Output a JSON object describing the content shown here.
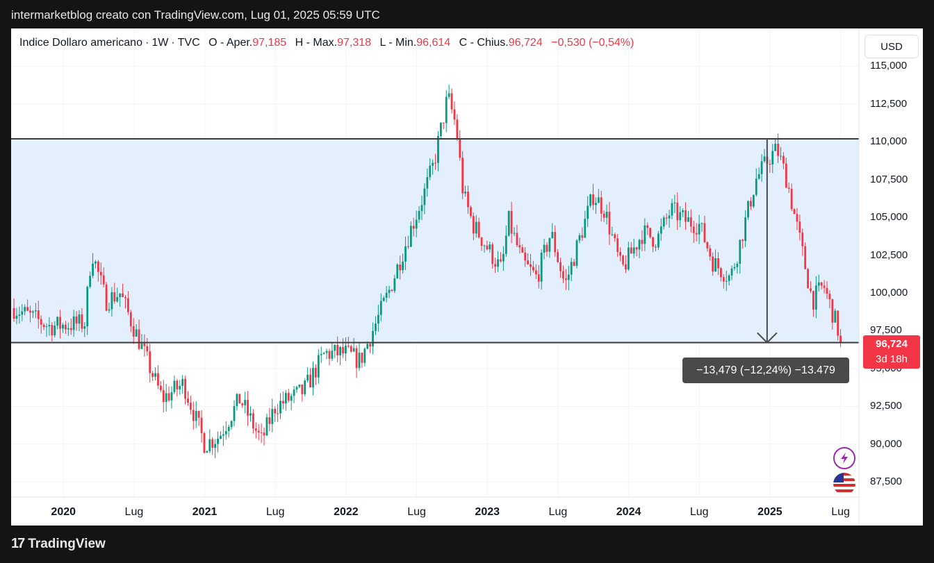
{
  "caption": "intermarketblog creato con TradingView.com, Lug 01, 2025 05:59 UTC",
  "legend": {
    "name": "Indice Dollaro americano",
    "interval": "1W",
    "source": "TVC",
    "open_label": "O - Aper.",
    "open": "97,185",
    "high_label": "H - Max.",
    "high": "97,318",
    "low_label": "L - Min.",
    "low": "96,614",
    "close_label": "C - Chius.",
    "close": "96,724",
    "change": "−0,530 (−0,54%)"
  },
  "currency": "USD",
  "price_badge": {
    "price": "96,724",
    "countdown": "3d 18h"
  },
  "measure_label": "−13,479 (−12,24%) −13.479",
  "brand": {
    "logo": "17",
    "name": "TradingView"
  },
  "icons": [
    "lightning-icon",
    "us-flag-icon"
  ],
  "colors": {
    "up": "#089981",
    "down": "#f23645",
    "range_fill": "#e3effd",
    "line": "#3a3a3a"
  },
  "chart_data": {
    "type": "candlestick",
    "y_ticks": [
      "115,000",
      "112,500",
      "110,000",
      "107,500",
      "105,000",
      "102,500",
      "100,000",
      "97,500",
      "95,000",
      "92,500",
      "90,000",
      "87,500"
    ],
    "y_tick_values": [
      115,
      112.5,
      110,
      107.5,
      105,
      102.5,
      100,
      97.5,
      95,
      92.5,
      90,
      87.5
    ],
    "ylim": [
      86.5,
      117.5
    ],
    "x_ticks": [
      {
        "label": "2020",
        "t": 2020.0,
        "major": true
      },
      {
        "label": "Lug",
        "t": 2020.5,
        "major": false
      },
      {
        "label": "2021",
        "t": 2021.0,
        "major": true
      },
      {
        "label": "Lug",
        "t": 2021.5,
        "major": false
      },
      {
        "label": "2022",
        "t": 2022.0,
        "major": true
      },
      {
        "label": "Lug",
        "t": 2022.5,
        "major": false
      },
      {
        "label": "2023",
        "t": 2023.0,
        "major": true
      },
      {
        "label": "Lug",
        "t": 2023.5,
        "major": false
      },
      {
        "label": "2024",
        "t": 2024.0,
        "major": true
      },
      {
        "label": "Lug",
        "t": 2024.5,
        "major": false
      },
      {
        "label": "2025",
        "t": 2025.0,
        "major": true
      },
      {
        "label": "Lug",
        "t": 2025.5,
        "major": false
      }
    ],
    "xlim": [
      2019.63,
      2025.63
    ],
    "range_box": {
      "upper": 110.2,
      "lower": 96.72
    },
    "measure": {
      "t": 2024.98,
      "from": 110.2,
      "to": 96.72
    },
    "path": [
      [
        2019.65,
        99.0
      ],
      [
        2019.9,
        97.8
      ],
      [
        2020.15,
        98.0
      ],
      [
        2020.2,
        102.8
      ],
      [
        2020.3,
        99.5
      ],
      [
        2020.4,
        100.0
      ],
      [
        2020.55,
        96.5
      ],
      [
        2020.7,
        93.0
      ],
      [
        2020.85,
        94.0
      ],
      [
        2021.0,
        90.0
      ],
      [
        2021.1,
        90.5
      ],
      [
        2021.25,
        93.0
      ],
      [
        2021.4,
        90.2
      ],
      [
        2021.5,
        92.5
      ],
      [
        2021.7,
        93.5
      ],
      [
        2021.85,
        96.0
      ],
      [
        2022.0,
        96.0
      ],
      [
        2022.1,
        95.5
      ],
      [
        2022.3,
        100.0
      ],
      [
        2022.45,
        104.0
      ],
      [
        2022.55,
        106.5
      ],
      [
        2022.62,
        108.5
      ],
      [
        2022.72,
        113.0
      ],
      [
        2022.78,
        111.0
      ],
      [
        2022.83,
        106.5
      ],
      [
        2022.9,
        104.5
      ],
      [
        2023.0,
        103.0
      ],
      [
        2023.1,
        101.5
      ],
      [
        2023.15,
        104.8
      ],
      [
        2023.25,
        102.0
      ],
      [
        2023.35,
        101.0
      ],
      [
        2023.45,
        104.0
      ],
      [
        2023.55,
        100.5
      ],
      [
        2023.65,
        103.5
      ],
      [
        2023.75,
        106.5
      ],
      [
        2023.83,
        105.5
      ],
      [
        2023.95,
        101.5
      ],
      [
        2024.1,
        104.0
      ],
      [
        2024.2,
        103.5
      ],
      [
        2024.3,
        105.5
      ],
      [
        2024.4,
        104.8
      ],
      [
        2024.5,
        104.5
      ],
      [
        2024.6,
        102.0
      ],
      [
        2024.72,
        101.0
      ],
      [
        2024.78,
        103.0
      ],
      [
        2024.9,
        107.5
      ],
      [
        2025.0,
        109.0
      ],
      [
        2025.05,
        109.5
      ],
      [
        2025.12,
        107.5
      ],
      [
        2025.2,
        104.0
      ],
      [
        2025.3,
        99.5
      ],
      [
        2025.38,
        100.5
      ],
      [
        2025.45,
        98.5
      ],
      [
        2025.5,
        97.0
      ]
    ],
    "last_close": 96.72,
    "weeks": 305
  }
}
